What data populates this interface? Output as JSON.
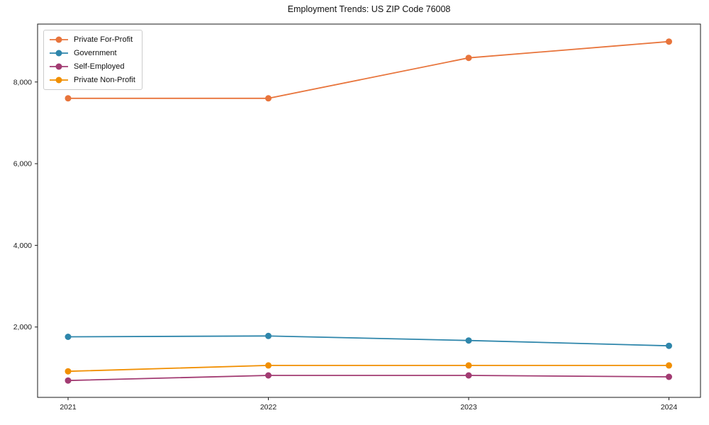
{
  "title": "Employment Trends: US ZIP Code 76008",
  "chart_data": {
    "type": "line",
    "title": "Employment Trends: US ZIP Code 76008",
    "categories": [
      "2021",
      "2022",
      "2023",
      "2024"
    ],
    "series": [
      {
        "name": "Private For-Profit",
        "color": "#E8743B",
        "values": [
          7600,
          7600,
          8590,
          8990
        ]
      },
      {
        "name": "Government",
        "color": "#2E86AB",
        "values": [
          1760,
          1780,
          1670,
          1540
        ]
      },
      {
        "name": "Self-Employed",
        "color": "#A23B72",
        "values": [
          690,
          815,
          815,
          780
        ]
      },
      {
        "name": "Private Non-Profit",
        "color": "#F18F01",
        "values": [
          915,
          1060,
          1060,
          1060
        ]
      }
    ],
    "xlabel": "",
    "ylabel": "",
    "ylim": [
      277,
      9418
    ],
    "yticks": [
      2000,
      4000,
      6000,
      8000
    ],
    "ytick_labels": [
      "2,000",
      "4,000",
      "6,000",
      "8,000"
    ],
    "grid": false,
    "legend_position": "upper left",
    "axis_color": "#1a1a1a",
    "background_color": "#ffffff"
  }
}
